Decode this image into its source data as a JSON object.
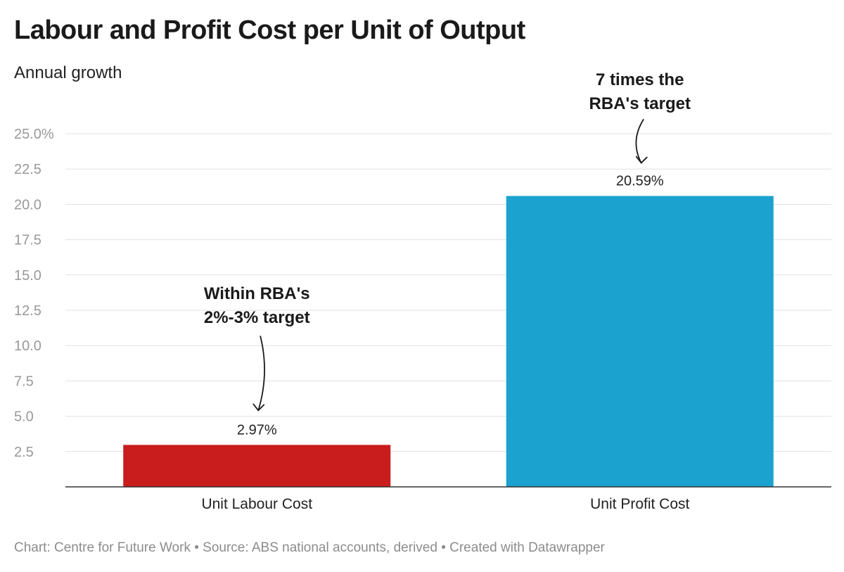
{
  "chart_data": {
    "type": "bar",
    "title": "Labour and Profit Cost per Unit of Output",
    "subtitle": "Annual growth",
    "categories": [
      "Unit Labour Cost",
      "Unit Profit Cost"
    ],
    "values": [
      2.97,
      20.59
    ],
    "value_labels": [
      "2.97%",
      "20.59%"
    ],
    "bar_colors": [
      "#c91c1c",
      "#1ba2cf"
    ],
    "ylim": [
      0,
      25
    ],
    "yticks": [
      2.5,
      5.0,
      7.5,
      10.0,
      12.5,
      15.0,
      17.5,
      20.0,
      22.5,
      25.0
    ],
    "ytick_labels": [
      "2.5",
      "5.0",
      "7.5",
      "10.0",
      "12.5",
      "15.0",
      "17.5",
      "20.0",
      "22.5",
      "25.0%"
    ],
    "grid": true,
    "annotations": [
      {
        "category": "Unit Labour Cost",
        "lines": [
          "Within RBA's",
          "2%-3% target"
        ]
      },
      {
        "category": "Unit Profit Cost",
        "lines": [
          "7 times the",
          "RBA's target"
        ]
      }
    ]
  },
  "footer": "Chart: Centre for Future Work • Source: ABS national accounts, derived • Created with Datawrapper"
}
